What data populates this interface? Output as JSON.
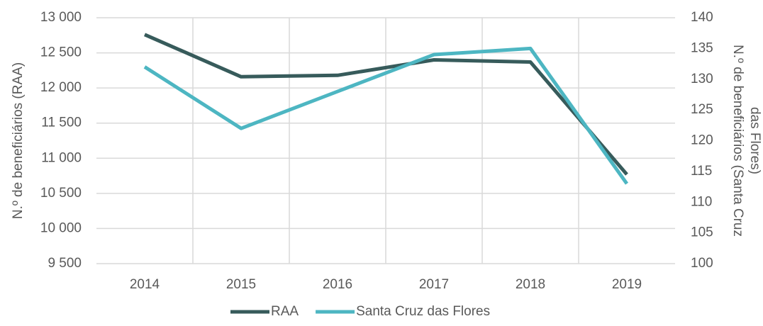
{
  "chart_data": {
    "type": "line",
    "categories": [
      "2014",
      "2015",
      "2016",
      "2017",
      "2018",
      "2019"
    ],
    "series": [
      {
        "name": "RAA",
        "color": "#375b5b",
        "values": [
          12760,
          12160,
          12180,
          12400,
          12370,
          10770
        ]
      },
      {
        "name": "Santa Cruz das Flores",
        "color": "#4db6c2",
        "axis": "y2",
        "values": [
          132,
          122,
          128,
          134,
          135,
          113
        ]
      }
    ],
    "ylabel": "N.º de beneficiários (RAA)",
    "y2label": [
      "N.º de beneficiários (Santa Cruz",
      "das Flores)"
    ],
    "ylim": [
      9500,
      13000
    ],
    "yticks": [
      {
        "value": 9500,
        "label": "9 500"
      },
      {
        "value": 10000,
        "label": "10 000"
      },
      {
        "value": 10500,
        "label": "10 500"
      },
      {
        "value": 11000,
        "label": "11 000"
      },
      {
        "value": 11500,
        "label": "11 500"
      },
      {
        "value": 12000,
        "label": "12 000"
      },
      {
        "value": 12500,
        "label": "12 500"
      },
      {
        "value": 13000,
        "label": "13 000"
      }
    ],
    "y2lim": [
      100,
      140
    ],
    "y2ticks": [
      100,
      105,
      110,
      115,
      120,
      125,
      130,
      135,
      140
    ],
    "grid": true,
    "legend": "bottom"
  }
}
